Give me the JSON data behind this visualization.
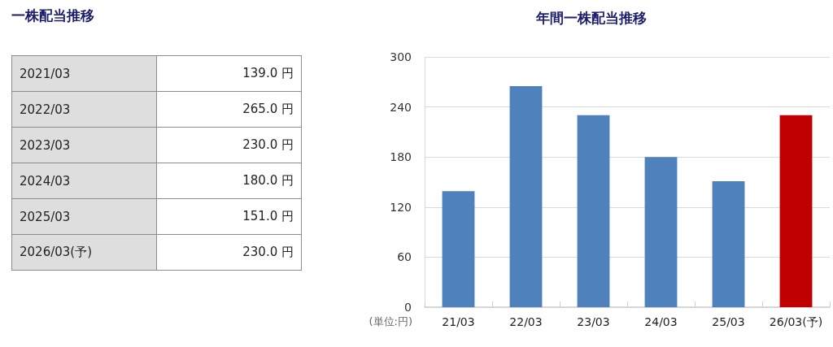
{
  "chart_data": [
    {
      "type": "other",
      "title": "一株配当推移",
      "categories": [
        "2021/03",
        "2022/03",
        "2023/03",
        "2024/03",
        "2025/03",
        "2026/03(予)"
      ],
      "value_labels": [
        "139.0 円",
        "265.0 円",
        "230.0 円",
        "180.0 円",
        "151.0 円",
        "230.0 円"
      ]
    },
    {
      "type": "bar",
      "title": "年間一株配当推移",
      "ylabel": "(単位:円)",
      "categories": [
        "21/03",
        "22/03",
        "23/03",
        "24/03",
        "25/03",
        "26/03(予)"
      ],
      "values": [
        139,
        265,
        230,
        180,
        151,
        230
      ],
      "colors": [
        "#4f81bd",
        "#4f81bd",
        "#4f81bd",
        "#4f81bd",
        "#4f81bd",
        "#c00000"
      ],
      "ylim": [
        0,
        300
      ],
      "yticks": [
        0,
        60,
        120,
        180,
        240,
        300
      ],
      "grid": "y"
    }
  ]
}
